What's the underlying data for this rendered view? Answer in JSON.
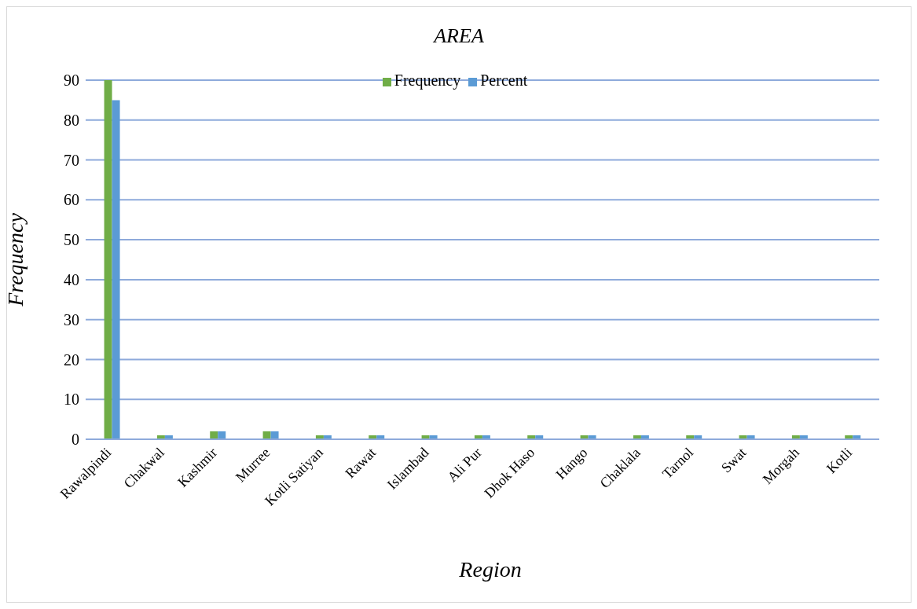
{
  "chart_data": {
    "type": "bar",
    "title": "AREA",
    "xlabel": "Region",
    "ylabel": "Frequency",
    "categories": [
      "Rawalpindi",
      "Chakwal",
      "Kashmir",
      "Murree",
      "Kotli Satiyan",
      "Rawat",
      "Islambad",
      "Ali Pur",
      "Dhok Haso",
      "Hango",
      "Chaklala",
      "Tarnol",
      "Swat",
      "Morgah",
      "Kotli"
    ],
    "series": [
      {
        "name": "Frequency",
        "color": "#70ad47",
        "values": [
          90,
          1,
          2,
          2,
          1,
          1,
          1,
          1,
          1,
          1,
          1,
          1,
          1,
          1,
          1
        ]
      },
      {
        "name": "Percent",
        "color": "#5b9bd5",
        "values": [
          85,
          1,
          2,
          2,
          1,
          1,
          1,
          1,
          1,
          1,
          1,
          1,
          1,
          1,
          1
        ]
      }
    ],
    "ylim": [
      0,
      90
    ],
    "yticks": [
      0,
      10,
      20,
      30,
      40,
      50,
      60,
      70,
      80,
      90
    ],
    "grid": "y",
    "legend": "top"
  }
}
